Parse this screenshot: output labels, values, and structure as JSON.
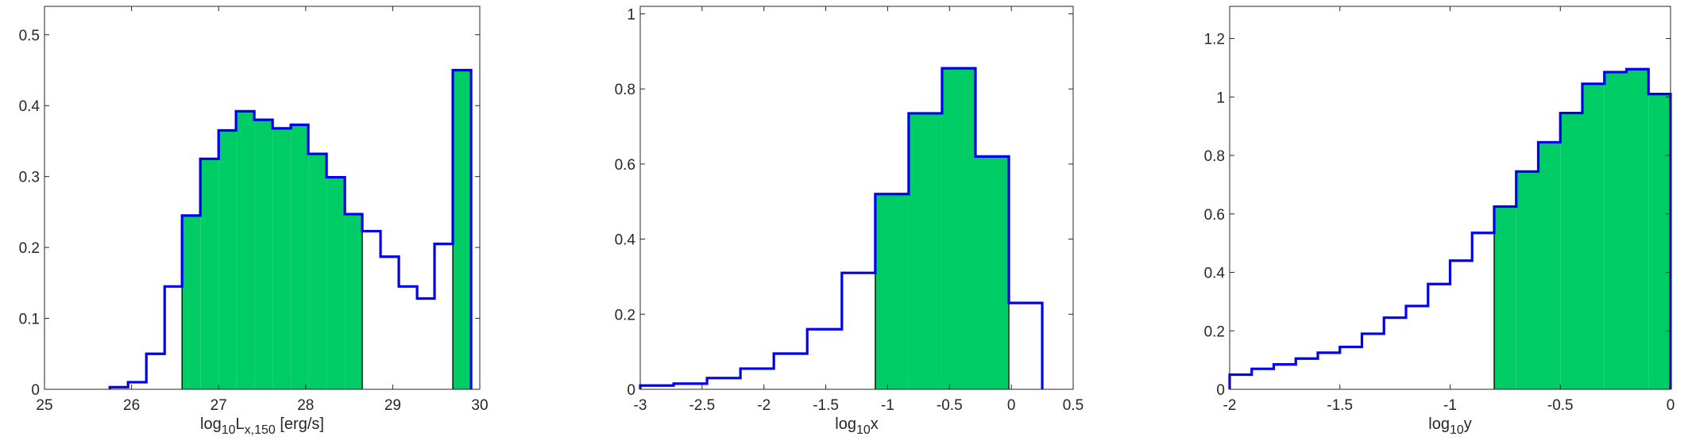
{
  "colors": {
    "fill": "#00cc66",
    "line": "#0000ee",
    "axis": "#262626",
    "background": "#ffffff"
  },
  "chart_data": [
    {
      "type": "histogram",
      "xlabel": {
        "prefix": "log",
        "sub1": "10",
        "mid": "L",
        "sub2": "x,150",
        "suffix": " [erg/s]"
      },
      "xlim": [
        25,
        30
      ],
      "ylim": [
        0,
        0.54
      ],
      "xticks": [
        25,
        26,
        27,
        28,
        29,
        30
      ],
      "xtick_labels": [
        "25",
        "26",
        "27",
        "28",
        "29",
        "30"
      ],
      "yticks": [
        0,
        0.1,
        0.2,
        0.3,
        0.4,
        0.5
      ],
      "ytick_labels": [
        "0",
        "0.1",
        "0.2",
        "0.3",
        "0.4",
        "0.5"
      ],
      "bin_edges": [
        25.75,
        25.96,
        26.17,
        26.38,
        26.58,
        26.79,
        27.0,
        27.2,
        27.41,
        27.62,
        27.83,
        28.03,
        28.24,
        28.45,
        28.65,
        28.86,
        29.07,
        29.28,
        29.48,
        29.69,
        29.9
      ],
      "values": [
        0.003,
        0.01,
        0.05,
        0.145,
        0.245,
        0.325,
        0.365,
        0.392,
        0.38,
        0.368,
        0.373,
        0.332,
        0.299,
        0.247,
        0.223,
        0.187,
        0.145,
        0.128,
        0.205,
        0.45
      ],
      "shaded_ranges": [
        [
          26.58,
          28.65
        ],
        [
          29.69,
          29.9
        ]
      ]
    },
    {
      "type": "histogram",
      "xlabel": {
        "prefix": "log",
        "sub1": "10",
        "mid": "x",
        "sub2": "",
        "suffix": ""
      },
      "xlim": [
        -3,
        0.5
      ],
      "ylim": [
        0,
        1.02
      ],
      "xticks": [
        -3,
        -2.5,
        -2,
        -1.5,
        -1,
        -0.5,
        0,
        0.5
      ],
      "xtick_labels": [
        "-3",
        "-2.5",
        "-2",
        "-1.5",
        "-1",
        "-0.5",
        "0",
        "0.5"
      ],
      "yticks": [
        0,
        0.2,
        0.4,
        0.6,
        0.8,
        1
      ],
      "ytick_labels": [
        "0",
        "0.2",
        "0.4",
        "0.6",
        "0.8",
        "1"
      ],
      "bin_edges": [
        -3.0,
        -2.73,
        -2.46,
        -2.19,
        -1.92,
        -1.65,
        -1.37,
        -1.1,
        -0.83,
        -0.56,
        -0.29,
        -0.02,
        0.25
      ],
      "values": [
        0.01,
        0.015,
        0.03,
        0.055,
        0.095,
        0.16,
        0.31,
        0.52,
        0.735,
        0.855,
        0.62,
        0.23
      ],
      "shaded_ranges": [
        [
          -1.1,
          -0.02
        ]
      ]
    },
    {
      "type": "histogram",
      "xlabel": {
        "prefix": "log",
        "sub1": "10",
        "mid": "y",
        "sub2": "",
        "suffix": ""
      },
      "xlim": [
        -2,
        0
      ],
      "ylim": [
        0,
        1.31
      ],
      "xticks": [
        -2,
        -1.5,
        -1,
        -0.5,
        0
      ],
      "xtick_labels": [
        "-2",
        "-1.5",
        "-1",
        "-0.5",
        "0"
      ],
      "yticks": [
        0,
        0.2,
        0.4,
        0.6,
        0.8,
        1,
        1.2
      ],
      "ytick_labels": [
        "0",
        "0.2",
        "0.4",
        "0.6",
        "0.8",
        "1",
        "1.2"
      ],
      "bin_edges": [
        -2.0,
        -1.9,
        -1.8,
        -1.7,
        -1.6,
        -1.5,
        -1.4,
        -1.3,
        -1.2,
        -1.1,
        -1.0,
        -0.9,
        -0.8,
        -0.7,
        -0.6,
        -0.5,
        -0.4,
        -0.3,
        -0.2,
        -0.1,
        0.0
      ],
      "values": [
        0.05,
        0.07,
        0.085,
        0.105,
        0.125,
        0.145,
        0.19,
        0.245,
        0.285,
        0.36,
        0.44,
        0.535,
        0.625,
        0.745,
        0.845,
        0.945,
        1.045,
        1.085,
        1.095,
        1.01
      ],
      "shaded_ranges": [
        [
          -0.8,
          0.0
        ]
      ]
    }
  ]
}
